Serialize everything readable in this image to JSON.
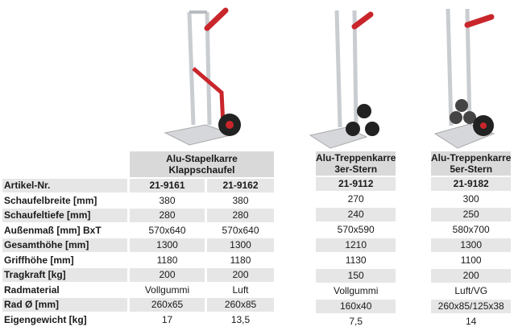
{
  "row_labels": [
    "Artikel-Nr.",
    "Schaufelbreite [mm]",
    "Schaufeltiefe [mm]",
    "Außenmaß [mm] BxT",
    "Gesamthöhe [mm]",
    "Griffhöhe [mm]",
    "Tragkraft [kg]",
    "Radmaterial",
    "Rad Ø [mm]",
    "Eigengewicht [kg]"
  ],
  "products": [
    {
      "title_line1": "Alu-Stapelkarre",
      "title_line2": "Klappschaufel",
      "variants": [
        {
          "artikel": "21-9161",
          "values": [
            "380",
            "280",
            "570x640",
            "1300",
            "1180",
            "200",
            "Vollgummi",
            "260x65",
            "17"
          ]
        },
        {
          "artikel": "21-9162",
          "values": [
            "380",
            "280",
            "570x640",
            "1300",
            "1180",
            "200",
            "Luft",
            "260x85",
            "13,5"
          ]
        }
      ]
    },
    {
      "title_line1": "Alu-Treppenkarre",
      "title_line2": "3er-Stern",
      "variants": [
        {
          "artikel": "21-9112",
          "values": [
            "270",
            "240",
            "570x590",
            "1210",
            "1130",
            "150",
            "Vollgummi",
            "160x40",
            "7,5"
          ]
        }
      ]
    },
    {
      "title_line1": "Alu-Treppenkarre",
      "title_line2": "5er-Stern",
      "variants": [
        {
          "artikel": "21-9182",
          "values": [
            "300",
            "250",
            "580x700",
            "1300",
            "1100",
            "200",
            "Luft/VG",
            "260x85/125x38",
            "14"
          ]
        }
      ]
    }
  ],
  "colors": {
    "header_bg": "#d9d9d9",
    "row_shade": "#e6e6e6",
    "handle_red": "#c8262b"
  }
}
